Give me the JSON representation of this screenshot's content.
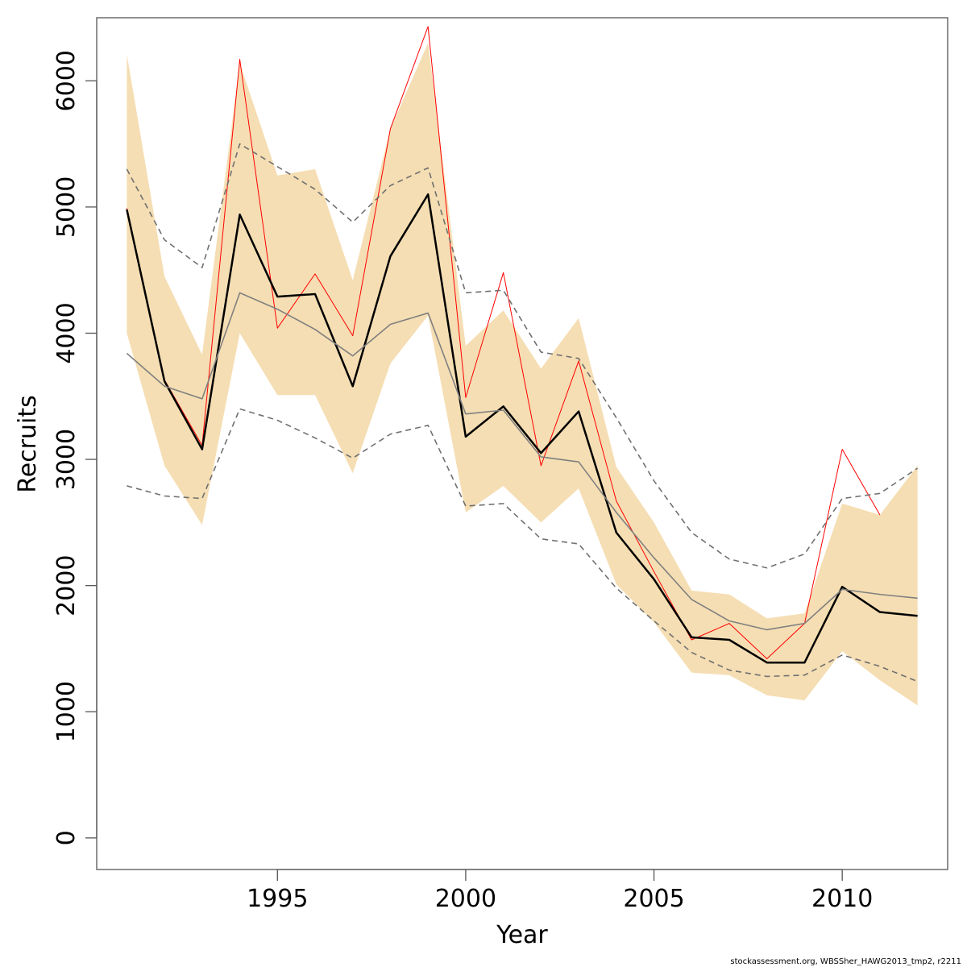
{
  "chart_data": {
    "type": "line",
    "title": "",
    "xlabel": "Year",
    "ylabel": "Recruits",
    "xlim": [
      1990.2,
      2012.8
    ],
    "ylim": [
      -250,
      6500
    ],
    "x_ticks": [
      1995,
      2000,
      2005,
      2010
    ],
    "y_ticks": [
      0,
      1000,
      2000,
      3000,
      4000,
      5000,
      6000
    ],
    "grid": false,
    "legend": "none",
    "x": [
      1991,
      1992,
      1993,
      1994,
      1995,
      1996,
      1997,
      1998,
      1999,
      2000,
      2001,
      2002,
      2003,
      2004,
      2005,
      2006,
      2007,
      2008,
      2009,
      2010,
      2011,
      2012
    ],
    "band": {
      "color": "#f5deb3",
      "upper": [
        6210,
        4450,
        3830,
        6140,
        5250,
        5300,
        4420,
        5620,
        6300,
        3900,
        4180,
        3720,
        4120,
        2940,
        2500,
        1960,
        1930,
        1740,
        1780,
        2650,
        2560,
        2950
      ],
      "lower": [
        4000,
        2950,
        2480,
        4000,
        3510,
        3510,
        2890,
        3760,
        4140,
        2580,
        2790,
        2500,
        2770,
        2010,
        1710,
        1310,
        1290,
        1130,
        1090,
        1480,
        1250,
        1050
      ]
    },
    "series": [
      {
        "color": "#ff0000",
        "width": 1,
        "dash": "",
        "values": [
          4990,
          3630,
          3110,
          6170,
          4040,
          4470,
          3980,
          5620,
          6430,
          3490,
          4480,
          2950,
          3780,
          2670,
          2110,
          1570,
          1700,
          1420,
          1700,
          3080,
          2560,
          null
        ]
      },
      {
        "color": "#000000",
        "width": 2.5,
        "dash": "",
        "values": [
          4980,
          3620,
          3080,
          4940,
          4290,
          4310,
          3580,
          4610,
          5100,
          3180,
          3420,
          3050,
          3380,
          2420,
          2050,
          1590,
          1570,
          1390,
          1390,
          1990,
          1790,
          1760
        ]
      },
      {
        "color": "#808080",
        "width": 1.6,
        "dash": "",
        "values": [
          3840,
          3580,
          3480,
          4320,
          4190,
          4030,
          3820,
          4070,
          4160,
          3360,
          3390,
          3020,
          2980,
          2580,
          2220,
          1890,
          1720,
          1650,
          1700,
          1970,
          1930,
          1900
        ]
      },
      {
        "color": "#707070",
        "width": 1.6,
        "dash": "7,5",
        "values": [
          5300,
          4740,
          4520,
          5500,
          5320,
          5140,
          4880,
          5170,
          5310,
          4320,
          4340,
          3850,
          3800,
          3330,
          2830,
          2420,
          2210,
          2140,
          2250,
          2690,
          2730,
          2930
        ]
      },
      {
        "color": "#707070",
        "width": 1.6,
        "dash": "7,5",
        "values": [
          2790,
          2710,
          2690,
          3400,
          3310,
          3170,
          3010,
          3200,
          3270,
          2630,
          2650,
          2370,
          2330,
          1980,
          1720,
          1470,
          1330,
          1280,
          1290,
          1450,
          1360,
          1240
        ]
      }
    ]
  },
  "footnote": "stockassessment.org, WBSSher_HAWG2013_tmp2, r2211"
}
